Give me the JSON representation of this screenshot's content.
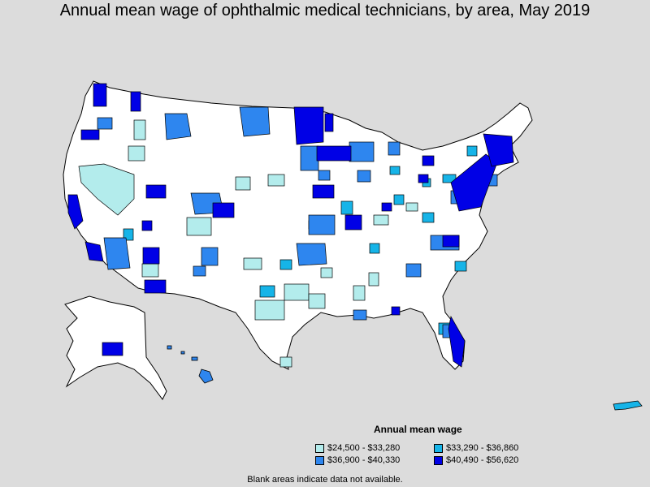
{
  "title": "Annual mean wage of ophthalmic medical technicians, by area, May 2019",
  "legend": {
    "title": "Annual mean wage",
    "items": [
      {
        "label": "$24,500 - $33,280",
        "color": "#b3ecec"
      },
      {
        "label": "$33,290 - $36,860",
        "color": "#16b4e8"
      },
      {
        "label": "$36,900 - $40,330",
        "color": "#2e86ef"
      },
      {
        "label": "$40,490 - $56,620",
        "color": "#0000e6"
      }
    ]
  },
  "note": "Blank areas indicate data not available.",
  "colors": {
    "background": "#dcdcdc",
    "land": "#ffffff",
    "border": "#000000"
  }
}
